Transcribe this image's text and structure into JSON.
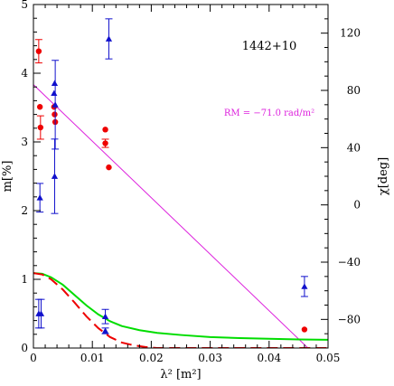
{
  "chart_data": {
    "type": "scatter",
    "annotation_source": "1442+10",
    "annotation_rm": "RM = −71.0 rad/m²",
    "xlabel": "λ² [m²]",
    "ylabel_left": "m[%]",
    "ylabel_right": "χ[deg]",
    "xlim": [
      0,
      0.05
    ],
    "ylim_left": [
      0,
      5
    ],
    "ylim_right": [
      -100,
      140
    ],
    "x_ticks": [
      0,
      0.01,
      0.02,
      0.03,
      0.04,
      0.05
    ],
    "x_tick_labels": [
      "0",
      "0.01",
      "0.02",
      "0.03",
      "0.04",
      "0.05"
    ],
    "y_left_ticks": [
      0,
      1,
      2,
      3,
      4,
      5
    ],
    "y_left_tick_labels": [
      "0",
      "1",
      "2",
      "3",
      "4",
      "5"
    ],
    "y_right_ticks": [
      -80,
      -40,
      0,
      40,
      80,
      120
    ],
    "y_right_tick_labels": [
      "−80",
      "−40",
      "0",
      "40",
      "80",
      "120"
    ],
    "colors": {
      "pol_degree": "#ee0000",
      "pol_angle": "#1010cc",
      "rm_fit": "#dd22dd",
      "model_green": "#00dd00",
      "model_red": "#ee0000",
      "axes": "#000000"
    },
    "series": [
      {
        "kind": "points-circle",
        "axis": "left",
        "color_key": "pol_degree",
        "points": [
          {
            "x": 0.0009,
            "y": 4.32,
            "err": 0.17
          },
          {
            "x": 0.0011,
            "y": 3.51,
            "err": 0
          },
          {
            "x": 0.0012,
            "y": 3.21,
            "err": 0.17
          },
          {
            "x": 0.0035,
            "y": 3.51,
            "err": 0
          },
          {
            "x": 0.0036,
            "y": 3.4,
            "err": 0
          },
          {
            "x": 0.0037,
            "y": 3.29,
            "err": 0
          },
          {
            "x": 0.0122,
            "y": 3.18,
            "err": 0
          },
          {
            "x": 0.0122,
            "y": 2.98,
            "err": 0.06
          },
          {
            "x": 0.0128,
            "y": 2.63,
            "err": 0
          },
          {
            "x": 0.046,
            "y": 0.27,
            "err": 0
          }
        ]
      },
      {
        "kind": "points-triangle",
        "axis": "right",
        "color_key": "pol_angle",
        "points": [
          {
            "x": 0.0009,
            "y": -76,
            "err": 10
          },
          {
            "x": 0.0011,
            "y": 5,
            "err": 10
          },
          {
            "x": 0.0013,
            "y": -76,
            "err": 10
          },
          {
            "x": 0.0035,
            "y": 78,
            "err": 0
          },
          {
            "x": 0.0036,
            "y": 85,
            "err": 0
          },
          {
            "x": 0.0036,
            "y": 20,
            "err": 26
          },
          {
            "x": 0.0037,
            "y": 70,
            "err": 31
          },
          {
            "x": 0.0122,
            "y": -78,
            "err": 5
          },
          {
            "x": 0.0122,
            "y": -88,
            "err": 2
          },
          {
            "x": 0.0128,
            "y": 116,
            "err": 14
          },
          {
            "x": 0.046,
            "y": -57,
            "err": 7
          }
        ]
      },
      {
        "kind": "line",
        "axis": "right",
        "color_key": "rm_fit",
        "dash": "solid",
        "x": [
          0,
          0.0466
        ],
        "y": [
          84,
          -100
        ]
      },
      {
        "kind": "line",
        "axis": "left",
        "color_key": "model_green",
        "dash": "solid",
        "x": [
          0,
          0.0015,
          0.003,
          0.005,
          0.007,
          0.009,
          0.011,
          0.013,
          0.015,
          0.018,
          0.021,
          0.025,
          0.03,
          0.035,
          0.04,
          0.045,
          0.05
        ],
        "y": [
          1.09,
          1.08,
          1.03,
          0.92,
          0.77,
          0.62,
          0.49,
          0.39,
          0.32,
          0.26,
          0.22,
          0.19,
          0.16,
          0.145,
          0.135,
          0.125,
          0.12
        ]
      },
      {
        "kind": "line",
        "axis": "left",
        "color_key": "model_red",
        "dash": "dashed",
        "x": [
          0,
          0.0015,
          0.003,
          0.005,
          0.007,
          0.009,
          0.011,
          0.013,
          0.015,
          0.017,
          0.019,
          0.021,
          0.025,
          0.03,
          0.04,
          0.05
        ],
        "y": [
          1.09,
          1.07,
          1.0,
          0.85,
          0.66,
          0.46,
          0.29,
          0.16,
          0.08,
          0.04,
          0.015,
          0.0,
          0,
          0,
          0,
          0
        ]
      }
    ]
  }
}
